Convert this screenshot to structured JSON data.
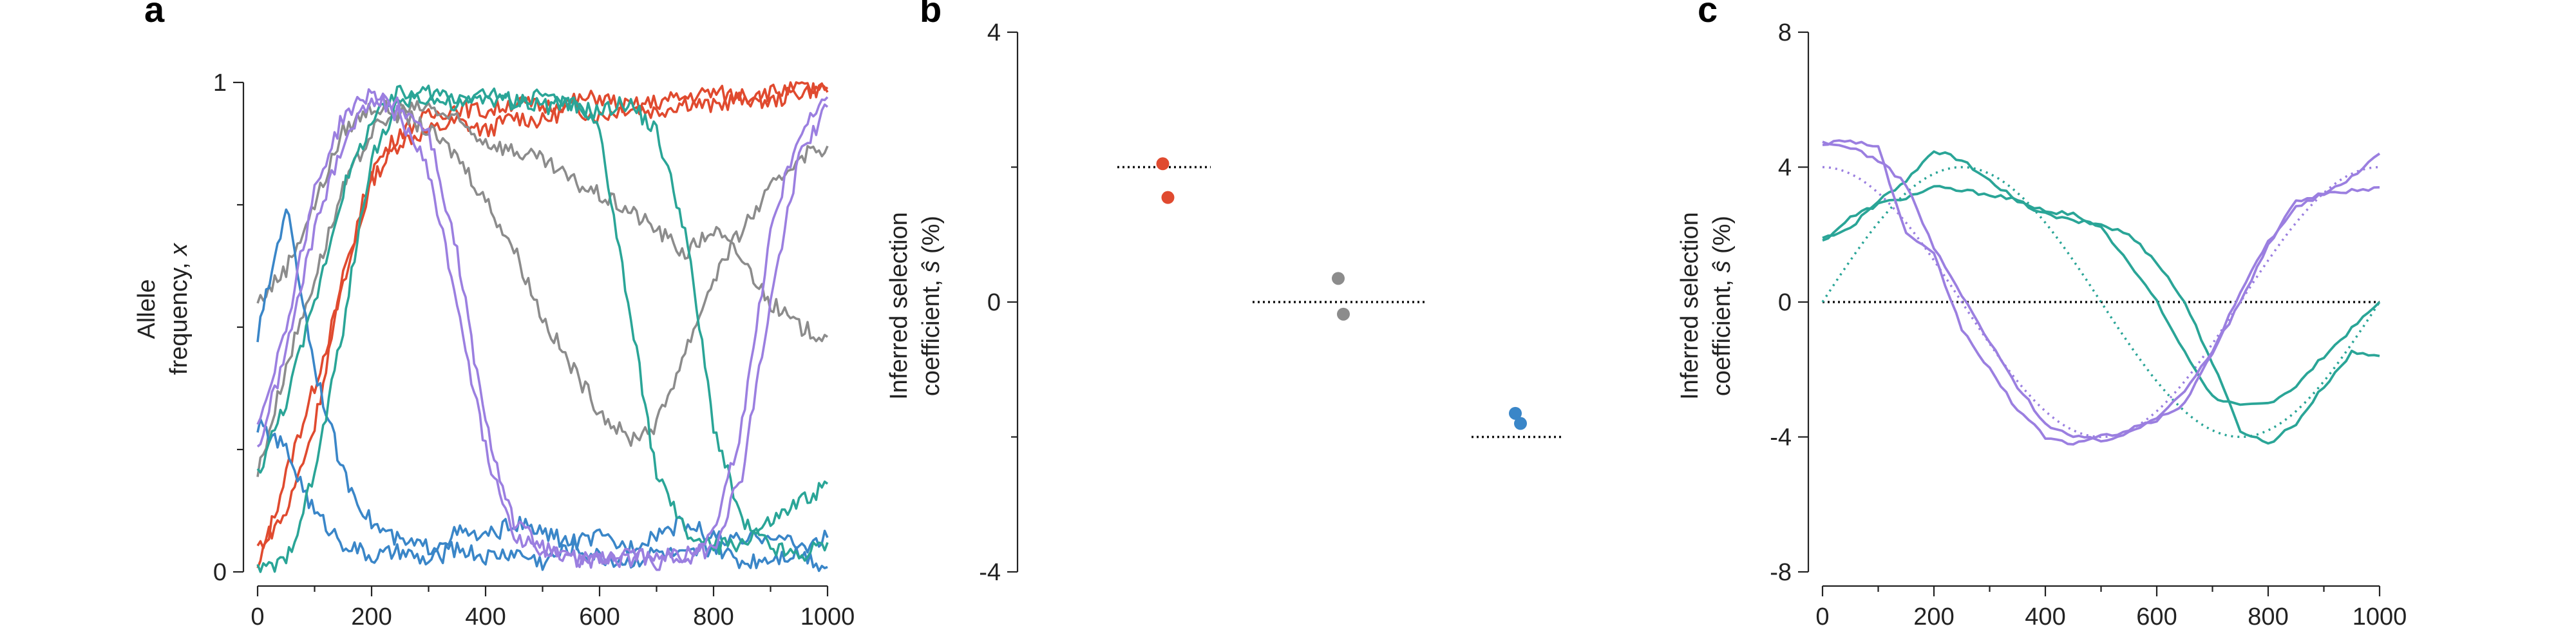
{
  "colors": {
    "red": "#e04a2f",
    "gray": "#8c8c8c",
    "blue": "#3a86c8",
    "teal": "#2aa597",
    "purple": "#9b7fe0",
    "axis": "#222222"
  },
  "chart_data": [
    {
      "panel": "a",
      "type": "line",
      "title": "",
      "ylabel_line1": "Allele",
      "ylabel_line2_prefix": "frequency, ",
      "ylabel_var": "x",
      "xlim": [
        0,
        1000
      ],
      "ylim": [
        0,
        1
      ],
      "xticks": [
        0,
        200,
        400,
        600,
        800,
        1000
      ],
      "xtick_labels": [
        "0",
        "200",
        "400",
        "600",
        "800",
        "1000"
      ],
      "yticks": [
        0,
        1
      ],
      "ytick_labels": [
        "0",
        "1"
      ],
      "series": [
        {
          "color": "red",
          "x": [
            0,
            50,
            100,
            150,
            200,
            250,
            300,
            350,
            400,
            450,
            500,
            550,
            600,
            650,
            700,
            750,
            800,
            850,
            900,
            950,
            1000
          ],
          "y": [
            0.0,
            0.2,
            0.38,
            0.58,
            0.8,
            0.88,
            0.9,
            0.92,
            0.9,
            0.93,
            0.92,
            0.95,
            0.93,
            0.95,
            0.94,
            0.96,
            0.95,
            0.97,
            0.96,
            0.98,
            0.99
          ]
        },
        {
          "color": "red",
          "x": [
            0,
            50,
            100,
            150,
            200,
            250,
            300,
            350,
            400,
            450,
            500,
            550,
            600,
            650,
            700,
            750,
            800,
            850,
            900,
            950,
            1000
          ],
          "y": [
            0.05,
            0.12,
            0.3,
            0.6,
            0.82,
            0.9,
            0.93,
            0.95,
            0.94,
            0.96,
            0.95,
            0.96,
            0.97,
            0.95,
            0.96,
            0.97,
            0.98,
            0.97,
            0.98,
            0.99,
            0.98
          ]
        },
        {
          "color": "gray",
          "x": [
            0,
            50,
            100,
            150,
            200,
            250,
            300,
            350,
            400,
            450,
            500,
            550,
            600,
            650,
            700,
            750,
            800,
            850,
            900,
            950,
            1000
          ],
          "y": [
            0.55,
            0.62,
            0.75,
            0.9,
            0.95,
            0.94,
            0.9,
            0.85,
            0.76,
            0.66,
            0.52,
            0.42,
            0.33,
            0.27,
            0.3,
            0.45,
            0.6,
            0.7,
            0.78,
            0.85,
            0.87
          ]
        },
        {
          "color": "gray",
          "x": [
            0,
            50,
            100,
            150,
            200,
            250,
            300,
            350,
            400,
            450,
            500,
            550,
            600,
            650,
            700,
            750,
            800,
            850,
            900,
            950,
            1000
          ],
          "y": [
            0.2,
            0.42,
            0.6,
            0.78,
            0.9,
            0.94,
            0.95,
            0.92,
            0.88,
            0.86,
            0.84,
            0.8,
            0.77,
            0.74,
            0.7,
            0.65,
            0.7,
            0.64,
            0.55,
            0.5,
            0.48
          ]
        },
        {
          "color": "blue",
          "x": [
            0,
            50,
            100,
            150,
            200,
            250,
            300,
            350,
            400,
            450,
            500,
            550,
            600,
            650,
            700,
            750,
            800,
            850,
            900,
            950,
            1000
          ],
          "y": [
            0.48,
            0.75,
            0.42,
            0.2,
            0.1,
            0.06,
            0.05,
            0.08,
            0.07,
            0.1,
            0.08,
            0.06,
            0.07,
            0.05,
            0.08,
            0.1,
            0.07,
            0.06,
            0.08,
            0.05,
            0.07
          ]
        },
        {
          "color": "blue",
          "x": [
            0,
            50,
            100,
            150,
            200,
            250,
            300,
            350,
            400,
            450,
            500,
            550,
            600,
            650,
            700,
            750,
            800,
            850,
            900,
            950,
            1000
          ],
          "y": [
            0.3,
            0.25,
            0.12,
            0.06,
            0.03,
            0.04,
            0.02,
            0.05,
            0.03,
            0.04,
            0.02,
            0.05,
            0.03,
            0.02,
            0.04,
            0.03,
            0.05,
            0.02,
            0.03,
            0.04,
            0.01
          ]
        },
        {
          "color": "teal",
          "x": [
            0,
            50,
            100,
            150,
            200,
            250,
            300,
            350,
            400,
            450,
            500,
            550,
            600,
            650,
            700,
            750,
            800,
            850,
            900,
            950,
            1000
          ],
          "y": [
            0.0,
            0.02,
            0.2,
            0.5,
            0.85,
            0.96,
            0.98,
            0.97,
            0.98,
            0.96,
            0.95,
            0.96,
            0.9,
            0.55,
            0.2,
            0.08,
            0.05,
            0.06,
            0.1,
            0.14,
            0.18
          ]
        },
        {
          "color": "teal",
          "x": [
            0,
            50,
            100,
            150,
            200,
            250,
            300,
            350,
            400,
            450,
            500,
            550,
            600,
            650,
            700,
            750,
            800,
            850,
            900,
            950,
            1000
          ],
          "y": [
            0.2,
            0.35,
            0.55,
            0.78,
            0.92,
            0.98,
            0.97,
            0.95,
            0.97,
            0.96,
            0.98,
            0.95,
            0.94,
            0.96,
            0.9,
            0.7,
            0.3,
            0.1,
            0.05,
            0.03,
            0.06
          ]
        },
        {
          "color": "purple",
          "x": [
            0,
            50,
            100,
            150,
            200,
            250,
            300,
            350,
            400,
            450,
            500,
            550,
            600,
            650,
            700,
            750,
            800,
            850,
            900,
            950,
            1000
          ],
          "y": [
            0.25,
            0.45,
            0.7,
            0.88,
            0.97,
            0.95,
            0.9,
            0.65,
            0.3,
            0.1,
            0.05,
            0.02,
            0.03,
            0.02,
            0.04,
            0.03,
            0.08,
            0.3,
            0.7,
            0.9,
            0.97
          ]
        },
        {
          "color": "purple",
          "x": [
            0,
            50,
            100,
            150,
            200,
            250,
            300,
            350,
            400,
            450,
            500,
            550,
            600,
            650,
            700,
            750,
            800,
            850,
            900,
            950,
            1000
          ],
          "y": [
            0.3,
            0.5,
            0.78,
            0.93,
            0.98,
            0.93,
            0.82,
            0.55,
            0.25,
            0.08,
            0.04,
            0.03,
            0.02,
            0.04,
            0.02,
            0.03,
            0.05,
            0.2,
            0.55,
            0.85,
            0.95
          ]
        }
      ]
    },
    {
      "panel": "b",
      "type": "scatter",
      "title": "",
      "ylabel_line1": "Inferred selection",
      "ylabel_line2_prefix": "coefficient, ",
      "ylabel_var": "ŝ",
      "ylabel_suffix": " (%)",
      "ylim": [
        -4,
        4
      ],
      "yticks": [
        -4,
        0,
        4
      ],
      "ytick_labels": [
        "-4",
        "0",
        "4"
      ],
      "groups": [
        {
          "color": "red",
          "true_value": 2.0,
          "estimates": [
            2.05,
            1.55
          ]
        },
        {
          "color": "gray",
          "true_value": 0.0,
          "estimates": [
            0.35,
            -0.18
          ]
        },
        {
          "color": "blue",
          "true_value": -2.0,
          "estimates": [
            -1.65,
            -1.8
          ]
        }
      ]
    },
    {
      "panel": "c",
      "type": "line",
      "title": "",
      "ylabel_line1": "Inferred selection",
      "ylabel_line2_prefix": "coefficient, ",
      "ylabel_var": "ŝ",
      "ylabel_suffix": " (%)",
      "xlim": [
        0,
        1000
      ],
      "ylim": [
        -8,
        8
      ],
      "xticks": [
        0,
        200,
        400,
        600,
        800,
        1000
      ],
      "xtick_labels": [
        "0",
        "200",
        "400",
        "600",
        "800",
        "1000"
      ],
      "yticks": [
        -8,
        -4,
        0,
        4,
        8
      ],
      "ytick_labels": [
        "-8",
        "-4",
        "0",
        "4",
        "8"
      ],
      "true_curves": [
        {
          "color": "teal",
          "amplitude": 4,
          "phase": "sin"
        },
        {
          "color": "purple",
          "amplitude": 4,
          "phase": "cos"
        }
      ],
      "series": [
        {
          "color": "teal",
          "x": [
            0,
            50,
            100,
            150,
            200,
            250,
            300,
            350,
            400,
            450,
            500,
            550,
            600,
            650,
            700,
            750,
            800,
            850,
            900,
            950,
            1000
          ],
          "y": [
            1.9,
            2.2,
            3.0,
            3.6,
            4.5,
            4.2,
            3.6,
            3.0,
            2.7,
            2.6,
            2.2,
            1.2,
            0.0,
            -1.5,
            -2.8,
            -3.1,
            -3.0,
            -2.5,
            -1.6,
            -0.8,
            0.0
          ]
        },
        {
          "color": "teal",
          "x": [
            0,
            50,
            100,
            150,
            200,
            250,
            300,
            350,
            400,
            450,
            500,
            550,
            600,
            650,
            700,
            750,
            800,
            850,
            900,
            950,
            1000
          ],
          "y": [
            1.8,
            2.5,
            2.9,
            3.1,
            3.4,
            3.3,
            3.2,
            3.0,
            2.6,
            2.4,
            2.3,
            2.0,
            1.2,
            0.0,
            -1.8,
            -3.8,
            -4.2,
            -3.6,
            -2.5,
            -1.5,
            -1.6
          ]
        },
        {
          "color": "purple",
          "x": [
            0,
            50,
            100,
            150,
            200,
            250,
            300,
            350,
            400,
            450,
            500,
            550,
            600,
            650,
            700,
            750,
            800,
            850,
            900,
            950,
            1000
          ],
          "y": [
            4.7,
            4.6,
            4.2,
            3.5,
            1.6,
            0.2,
            -1.2,
            -2.5,
            -3.6,
            -4.0,
            -4.1,
            -3.9,
            -3.4,
            -2.6,
            -1.5,
            0.3,
            1.8,
            2.8,
            3.2,
            3.3,
            3.4
          ]
        },
        {
          "color": "purple",
          "x": [
            0,
            50,
            100,
            150,
            200,
            250,
            300,
            350,
            400,
            450,
            500,
            550,
            600,
            650,
            700,
            750,
            800,
            850,
            900,
            950,
            1000
          ],
          "y": [
            4.7,
            4.8,
            4.6,
            2.0,
            1.4,
            -0.8,
            -2.0,
            -3.2,
            -4.0,
            -4.2,
            -4.0,
            -3.8,
            -3.5,
            -3.0,
            -1.5,
            0.0,
            1.7,
            3.0,
            3.2,
            3.7,
            4.4
          ]
        }
      ]
    }
  ]
}
